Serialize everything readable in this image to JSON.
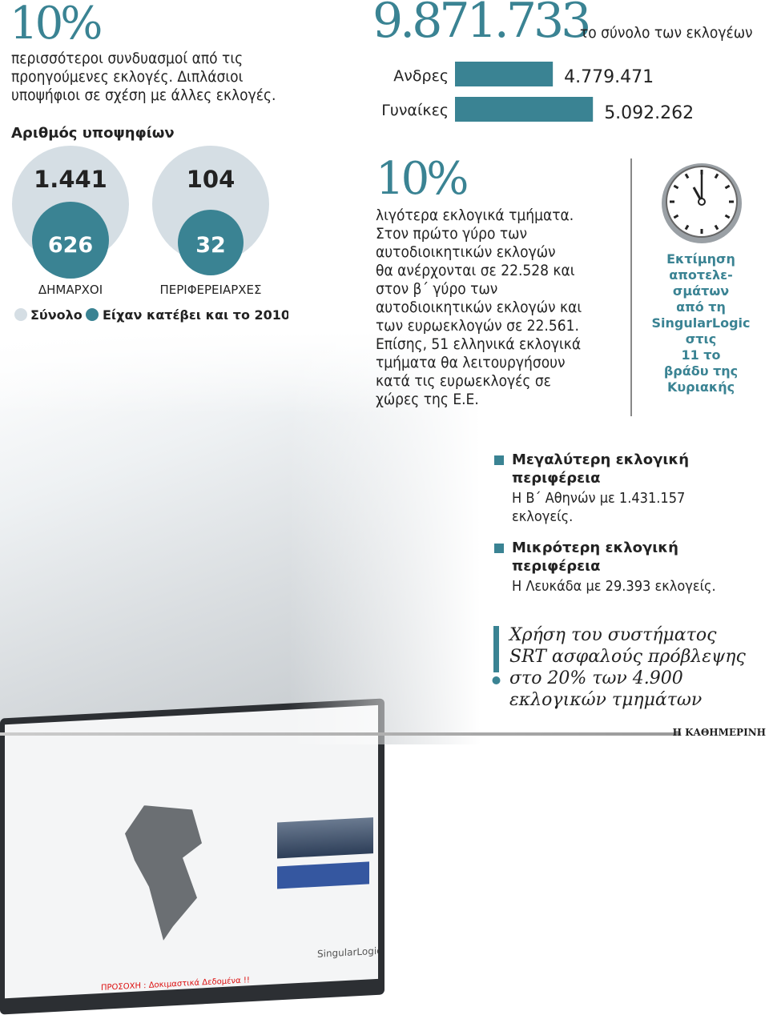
{
  "left_stat": {
    "value": "10%",
    "text": [
      "περισσότεροι συνδυασμοί από τις",
      "προηγούμενες εκλογές. Διπλάσιοι",
      "υποψήφιοι σε σχέση με άλλες εκλογές."
    ]
  },
  "candidates": {
    "title": "Αριθμός υποψηφίων",
    "legend": [
      "Σύνολο",
      "Είχαν κατέβει και το 2010"
    ]
  },
  "total_voters": {
    "value": "9.871.733",
    "label": "το σύνολο των εκλογέων"
  },
  "middle_stat": {
    "value": "10%",
    "text": [
      "λιγότερα εκλογικά τμήματα.",
      "Στον πρώτο γύρο των",
      "αυτοδιοικητικών εκλογών",
      "θα ανέρχονται σε 22.528 και",
      "στον β΄ γύρο των",
      "αυτοδιοικητικών εκλογών και",
      "των ευρωεκλογών σε 22.561.",
      "Επίσης, 51 ελληνικά εκλογικά",
      "τμήματα θα λειτουργήσουν",
      "κατά τις ευρωεκλογές σε",
      "χώρες της Ε.Ε."
    ]
  },
  "estimate": {
    "icon": "clock-icon",
    "text": [
      "Εκτίμηση",
      "αποτελε-",
      "σμάτων",
      "από τη",
      "SingularLogic",
      "στις",
      "11 το",
      "βράδυ της",
      "Κυριακής"
    ]
  },
  "facts": [
    {
      "title": [
        "Μεγαλύτερη εκλογική",
        "περιφέρεια"
      ],
      "text": [
        "Η Β΄ Αθηνών με 1.431.157",
        "εκλογείς."
      ]
    },
    {
      "title": [
        "Μικρότερη εκλογική",
        "περιφέρεια"
      ],
      "text": [
        "Η Λευκάδα με 29.393 εκλογείς."
      ]
    }
  ],
  "note": {
    "icon": "exclamation-icon",
    "text": [
      "Χρήση του συστήματος",
      "SRT ασφαλούς πρόβλεψης",
      "στο 20% των 4.900",
      "εκλογικών τμημάτων"
    ]
  },
  "photo": {
    "warning": "ΠΡΟΣΟΧΗ : Δοκιμαστικά Δεδομένα !!",
    "logo": "SingularLogic"
  },
  "credit": "Η ΚΑΘΗΜΕΡΙΝΗ",
  "colors": {
    "accent": "#3a8393",
    "light": "#d5dee4"
  },
  "chart_data": [
    {
      "type": "bar",
      "orientation": "horizontal",
      "categories": [
        "Ανδρες",
        "Γυναίκες"
      ],
      "values": [
        4779471,
        5092262
      ],
      "labels": [
        "4.779.471",
        "5.092.262"
      ]
    },
    {
      "type": "bubble",
      "categories": [
        "ΔΗΜΑΡΧΟΙ",
        "ΠΕΡΙΦΕΡΕΙΑΡΧΕΣ"
      ],
      "series": [
        {
          "name": "Σύνολο",
          "values": [
            1441,
            104
          ],
          "labels": [
            "1.441",
            "104"
          ]
        },
        {
          "name": "Είχαν κατέβει και το 2010",
          "values": [
            626,
            32
          ],
          "labels": [
            "626",
            "32"
          ]
        }
      ]
    }
  ]
}
